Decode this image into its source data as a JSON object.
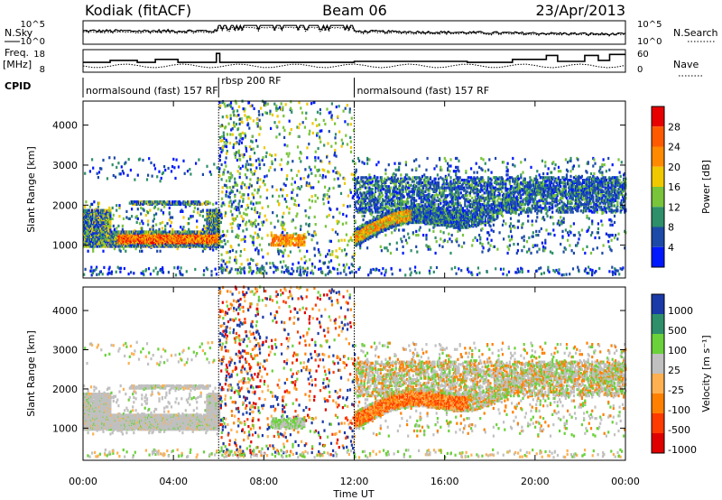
{
  "header": {
    "station": "Kodiak (fitACF)",
    "beam": "Beam 06",
    "date": "23/Apr/2013"
  },
  "top_panels": {
    "nsky_label": "N.Sky",
    "nsearch_label": "N.Search",
    "freq_label": "Freq.",
    "freq_unit": "[MHz]",
    "nave_label": "Nave",
    "cpid_label": "CPID",
    "nsky_ticks": [
      "10^5",
      "10^0"
    ],
    "nsearch_ticks": [
      "10^5",
      "10^0"
    ],
    "freq_ticks": [
      "18",
      "8"
    ],
    "nave_ticks": [
      "60",
      "0"
    ]
  },
  "cpid_segments": [
    {
      "label": "normalsound (fast) 157 RF",
      "start": 0,
      "end": 6
    },
    {
      "label": "rbsp 200 RF",
      "start": 6,
      "end": 12
    },
    {
      "label": "normalsound (fast) 157 RF",
      "start": 12,
      "end": 24
    }
  ],
  "x_axis": {
    "label": "Time UT",
    "ticks": [
      "00:00",
      "04:00",
      "08:00",
      "12:00",
      "16:00",
      "20:00",
      "00:00"
    ],
    "range_hours": [
      0,
      24
    ]
  },
  "chart_data": [
    {
      "type": "heatmap",
      "name": "power",
      "ylabel": "Slant Range [km]",
      "yticks": [
        1000,
        2000,
        3000,
        4000
      ],
      "ylim": [
        180,
        4600
      ],
      "xlim": [
        0,
        24
      ],
      "colorbar_label": "Power [dB]",
      "colorbar_ticks": [
        "4",
        "8",
        "12",
        "16",
        "20",
        "24",
        "28"
      ],
      "colors": [
        "#0018ff",
        "#1c4aa8",
        "#2e8f6a",
        "#78c43a",
        "#f0c800",
        "#ff8a00",
        "#ff5a00",
        "#e80000"
      ]
    },
    {
      "type": "heatmap",
      "name": "velocity",
      "ylabel": "Slant Range [km]",
      "yticks": [
        1000,
        2000,
        3000,
        4000
      ],
      "ylim": [
        180,
        4600
      ],
      "xlim": [
        0,
        24
      ],
      "colorbar_label": "Velocity [m s⁻¹]",
      "colorbar_ticks": [
        "1000",
        "500",
        "100",
        "25",
        "-25",
        "-100",
        "-500",
        "-1000"
      ],
      "colors": [
        "#1a3aa8",
        "#2e8f6a",
        "#6ad13a",
        "#c0c0c0",
        "#ffb050",
        "#ff8000",
        "#ff3a00",
        "#e00000"
      ]
    }
  ]
}
